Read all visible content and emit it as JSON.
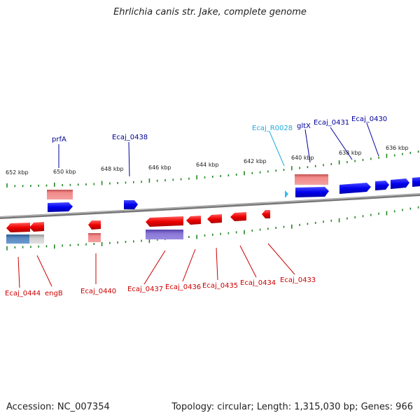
{
  "title": "Ehrlichia canis str. Jake, complete genome",
  "footer": {
    "accession": "Accession: NC_007354",
    "summary": "Topology: circular; Length: 1,315,030 bp; Genes: 966"
  },
  "scale_labels": [
    "652 kbp",
    "650 kbp",
    "648 kbp",
    "646 kbp",
    "644 kbp",
    "642 kbp",
    "640 kbp",
    "638 kbp",
    "636 kbp"
  ],
  "top_labels": [
    "prfA",
    "Ecaj_0438",
    "Ecaj_R0028",
    "gltX",
    "Ecaj_0431",
    "Ecaj_0430"
  ],
  "bottom_labels": [
    "Ecaj_0444",
    "engB",
    "Ecaj_0440",
    "Ecaj_0437",
    "Ecaj_0436",
    "Ecaj_0435",
    "Ecaj_0434",
    "Ecaj_0433"
  ],
  "colors": {
    "forward_cds": "#0000ee",
    "reverse_cds": "#ee0000",
    "rna": "#33bbee",
    "label_forward": "#000099",
    "label_reverse": "#cc0000",
    "label_rna": "#22aadd",
    "tick": "#228822",
    "backbone": "#888888"
  }
}
